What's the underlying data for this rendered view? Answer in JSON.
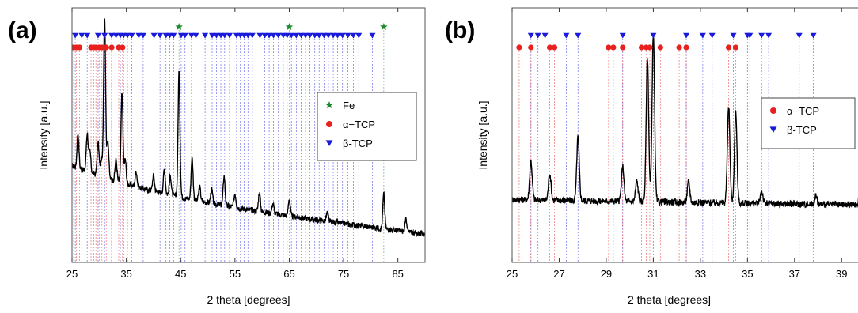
{
  "colors": {
    "fe": "#1a8a2a",
    "alpha": "#e8201e",
    "beta": "#1a1adc",
    "trace": "#000000"
  },
  "chart_data": [
    {
      "type": "line",
      "panel_label": "(a)",
      "xlabel": "2 theta [degrees]",
      "ylabel": "Intensity [a.u.]",
      "xlim": [
        25,
        90
      ],
      "ylim": [
        0,
        100
      ],
      "xticks": [
        25,
        35,
        45,
        55,
        65,
        75,
        85
      ],
      "grid": false,
      "legend": {
        "placement": "right",
        "entries": [
          {
            "name": "Fe",
            "marker": "star"
          },
          {
            "name": "α−TCP",
            "marker": "circle"
          },
          {
            "name": "β-TCP",
            "marker": "triangle-down"
          }
        ]
      },
      "series": [
        {
          "name": "intensity",
          "peaks": [
            [
              26.1,
              20
            ],
            [
              27.8,
              22
            ],
            [
              28.3,
              12
            ],
            [
              29.8,
              19
            ],
            [
              30.4,
              10
            ],
            [
              31.0,
              93
            ],
            [
              31.6,
              22
            ],
            [
              33.1,
              12
            ],
            [
              34.2,
              51
            ],
            [
              34.8,
              14
            ],
            [
              36.8,
              9
            ],
            [
              40.0,
              9
            ],
            [
              42.0,
              14
            ],
            [
              43.1,
              11
            ],
            [
              44.7,
              72
            ],
            [
              47.1,
              24
            ],
            [
              48.5,
              8
            ],
            [
              50.7,
              8
            ],
            [
              53.0,
              17
            ],
            [
              55.0,
              8
            ],
            [
              59.5,
              11
            ],
            [
              62.0,
              6
            ],
            [
              65.0,
              10
            ],
            [
              72.0,
              5
            ],
            [
              82.4,
              20
            ],
            [
              86.5,
              7
            ]
          ]
        }
      ],
      "markers": {
        "fe": [
          44.7,
          65.0,
          82.4
        ],
        "alpha": [
          25.3,
          25.8,
          26.4,
          28.5,
          29.0,
          29.4,
          30.0,
          30.5,
          31.3,
          32.3,
          33.6,
          34.3
        ],
        "beta": [
          25.6,
          26.8,
          27.8,
          29.8,
          31.0,
          32.3,
          33.1,
          33.9,
          34.5,
          35.2,
          36.0,
          37.3,
          38.1,
          40.1,
          41.2,
          42.3,
          43.0,
          43.7,
          45.1,
          45.8,
          47.0,
          47.8,
          49.5,
          50.8,
          51.6,
          52.4,
          53.1,
          54.0,
          55.3,
          56.0,
          56.7,
          57.4,
          58.2,
          59.6,
          60.5,
          61.3,
          62.1,
          63.0,
          63.9,
          64.6,
          65.4,
          66.3,
          67.2,
          68.0,
          68.8,
          69.7,
          70.5,
          71.4,
          72.2,
          73.1,
          73.9,
          74.8,
          75.8,
          76.8,
          77.8,
          80.3
        ]
      }
    },
    {
      "type": "line",
      "panel_label": "(b)",
      "xlabel": "2 theta [degrees]",
      "ylabel": "Intensity [a.u.]",
      "xlim": [
        25,
        40
      ],
      "ylim": [
        0,
        100
      ],
      "xticks": [
        25,
        27,
        29,
        31,
        33,
        35,
        37,
        39
      ],
      "grid": false,
      "legend": {
        "placement": "right",
        "entries": [
          {
            "name": "α−TCP",
            "marker": "circle"
          },
          {
            "name": "β-TCP",
            "marker": "triangle-down"
          }
        ]
      },
      "series": [
        {
          "name": "intensity",
          "peaks": [
            [
              25.8,
              19
            ],
            [
              26.6,
              13
            ],
            [
              27.8,
              31
            ],
            [
              29.7,
              17
            ],
            [
              30.3,
              10
            ],
            [
              30.75,
              70
            ],
            [
              31.0,
              82
            ],
            [
              32.5,
              10
            ],
            [
              34.2,
              47
            ],
            [
              34.5,
              45
            ],
            [
              35.6,
              6
            ],
            [
              37.9,
              4
            ],
            [
              39.8,
              9
            ]
          ]
        }
      ],
      "markers": {
        "alpha": [
          25.3,
          25.8,
          26.6,
          26.8,
          29.1,
          29.3,
          29.7,
          30.5,
          30.7,
          30.85,
          31.3,
          32.1,
          32.4,
          34.2,
          34.5
        ],
        "beta": [
          25.8,
          26.1,
          26.4,
          27.3,
          27.8,
          29.7,
          31.0,
          32.4,
          33.1,
          33.5,
          34.4,
          35.0,
          35.1,
          35.6,
          35.9,
          37.2,
          37.8,
          39.9
        ]
      }
    }
  ]
}
